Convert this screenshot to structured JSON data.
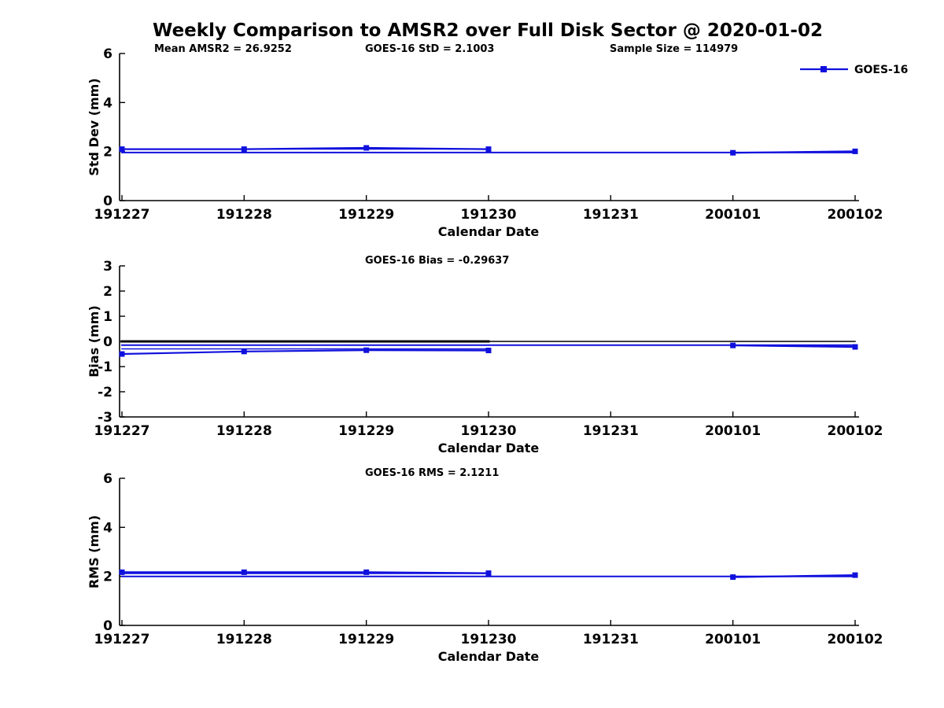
{
  "title": "Weekly Comparison to AMSR2 over Full Disk Sector @ 2020-01-02",
  "legend": {
    "label": "GOES-16"
  },
  "colors": {
    "line": "#1010dd",
    "axis": "#000000",
    "text": "#000000",
    "background": "#ffffff"
  },
  "x_axis": {
    "label": "Calendar Date",
    "categories": [
      "191227",
      "191228",
      "191229",
      "191230",
      "191231",
      "200101",
      "200102"
    ]
  },
  "chart_data": [
    {
      "type": "line",
      "panel": "std-dev",
      "annotations": [
        "Mean AMSR2 = 26.9252",
        "GOES-16 StD = 2.1003",
        "Sample Size = 114979"
      ],
      "ylabel": "Std Dev (mm)",
      "xlabel": "Calendar Date",
      "ylim": [
        0,
        6
      ],
      "yticks": [
        "0",
        "2",
        "4",
        "6"
      ],
      "grid": false,
      "legend_position": "top-right-outside",
      "series": [
        {
          "name": "weekly-std-line",
          "color": "blue",
          "width": 1.6,
          "marker": false,
          "values": [
            2.1003,
            2.1003,
            2.1003,
            2.1003,
            null,
            null,
            null
          ]
        },
        {
          "name": "reference-line",
          "color": "blue",
          "width": 2.0,
          "marker": false,
          "values": [
            1.96,
            1.96,
            1.96,
            1.96,
            1.96,
            1.96,
            1.96
          ]
        },
        {
          "name": "GOES-16",
          "color": "blue",
          "width": 2.2,
          "marker": true,
          "values": [
            2.1,
            2.1,
            2.15,
            2.1,
            null,
            1.95,
            2.01
          ]
        }
      ]
    },
    {
      "type": "line",
      "panel": "bias",
      "annotations": [
        "GOES-16 Bias  = -0.29637"
      ],
      "ylabel": "Bias (mm)",
      "xlabel": "Calendar Date",
      "ylim": [
        -3,
        3
      ],
      "yticks": [
        "-3",
        "-2",
        "-1",
        "0",
        "1",
        "2",
        "3"
      ],
      "grid": false,
      "series": [
        {
          "name": "zero-line",
          "color": "black",
          "width": 1.5,
          "marker": false,
          "values": [
            0,
            0,
            0,
            0,
            0,
            0,
            0
          ]
        },
        {
          "name": "zero-line-thick",
          "color": "black",
          "width": 3.0,
          "marker": false,
          "values": [
            0,
            0,
            0,
            0,
            null,
            null,
            null
          ]
        },
        {
          "name": "weekly-bias-line",
          "color": "blue",
          "width": 1.6,
          "marker": false,
          "values": [
            -0.29637,
            -0.29637,
            -0.29637,
            -0.29637,
            null,
            null,
            null
          ]
        },
        {
          "name": "reference-line",
          "color": "blue",
          "width": 2.0,
          "marker": false,
          "values": [
            -0.15,
            -0.15,
            -0.15,
            -0.15,
            -0.15,
            -0.15,
            -0.15
          ]
        },
        {
          "name": "GOES-16",
          "color": "blue",
          "width": 2.2,
          "marker": true,
          "values": [
            -0.5,
            -0.4,
            -0.35,
            -0.36,
            null,
            -0.16,
            -0.22
          ]
        }
      ]
    },
    {
      "type": "line",
      "panel": "rms",
      "annotations": [
        "GOES-16 RMS = 2.1211"
      ],
      "ylabel": "RMS (mm)",
      "xlabel": "Calendar Date",
      "ylim": [
        0,
        6
      ],
      "yticks": [
        "0",
        "2",
        "4",
        "6"
      ],
      "grid": false,
      "series": [
        {
          "name": "weekly-rms-line",
          "color": "blue",
          "width": 1.6,
          "marker": false,
          "values": [
            2.1211,
            2.1211,
            2.1211,
            2.1211,
            null,
            null,
            null
          ]
        },
        {
          "name": "reference-line",
          "color": "blue",
          "width": 2.0,
          "marker": false,
          "values": [
            2.0,
            2.0,
            2.0,
            2.0,
            2.0,
            2.0,
            2.0
          ]
        },
        {
          "name": "GOES-16",
          "color": "blue",
          "width": 2.2,
          "marker": true,
          "values": [
            2.17,
            2.17,
            2.17,
            2.13,
            null,
            1.97,
            2.05
          ]
        }
      ]
    }
  ]
}
